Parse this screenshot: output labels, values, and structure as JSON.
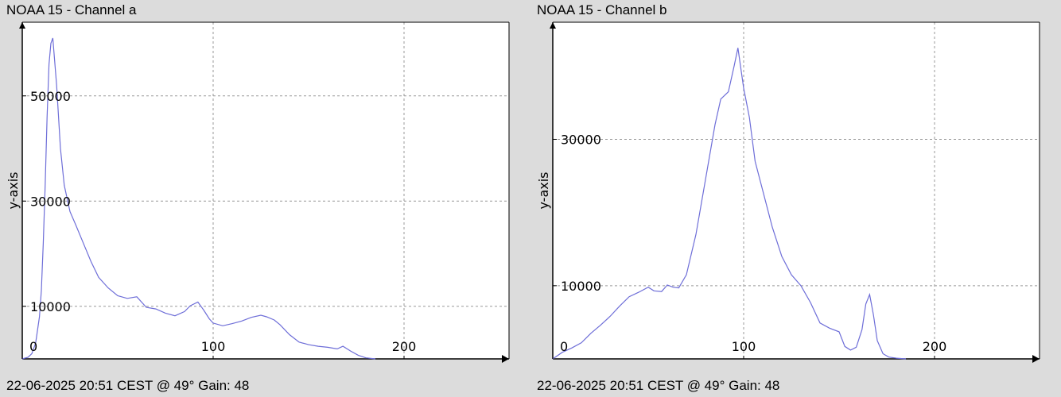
{
  "charts": [
    {
      "title": "NOAA 15 - Channel a",
      "footer": "22-06-2025 20:51 CEST @ 49° Gain: 48"
    },
    {
      "title": "NOAA 15 - Channel b",
      "footer": "22-06-2025 20:51 CEST @ 49° Gain: 48"
    }
  ],
  "colors": {
    "background": "#dcdcdc",
    "plot_area": "#ffffff",
    "line": "#6e6ed8",
    "grid": "#999999"
  },
  "chart_data": [
    {
      "type": "line",
      "title": "NOAA 15 - Channel a",
      "xlabel": "",
      "ylabel": "y-axis",
      "xlim": [
        0,
        255
      ],
      "ylim": [
        0,
        64000
      ],
      "xticks": [
        0,
        100,
        200
      ],
      "yticks": [
        10000,
        30000,
        50000
      ],
      "grid": true,
      "series": [
        {
          "x": [
            0,
            3,
            5,
            7,
            9,
            10,
            11,
            12,
            13,
            14,
            15,
            16,
            18,
            20,
            22,
            25,
            28,
            32,
            36,
            40,
            45,
            50,
            55,
            60,
            65,
            70,
            75,
            80,
            85,
            88,
            92,
            95,
            98,
            100,
            105,
            110,
            115,
            120,
            125,
            128,
            132,
            135,
            140,
            145,
            150,
            155,
            160,
            165,
            168,
            172,
            176,
            180,
            185
          ],
          "y": [
            0,
            300,
            1000,
            3000,
            8000,
            13000,
            22000,
            33000,
            46000,
            56000,
            60000,
            61000,
            52000,
            40000,
            33000,
            28000,
            25500,
            22000,
            18500,
            15500,
            13500,
            12000,
            11500,
            11800,
            9800,
            9500,
            8700,
            8200,
            9000,
            10100,
            10800,
            9300,
            7600,
            6800,
            6300,
            6700,
            7200,
            7900,
            8300,
            8000,
            7400,
            6500,
            4600,
            3200,
            2700,
            2400,
            2200,
            1900,
            2400,
            1500,
            700,
            200,
            0
          ]
        }
      ]
    },
    {
      "type": "line",
      "title": "NOAA 15 - Channel b",
      "xlabel": "",
      "ylabel": "y-axis",
      "xlim": [
        0,
        255
      ],
      "ylim": [
        0,
        46000
      ],
      "xticks": [
        0,
        100,
        200
      ],
      "yticks": [
        10000,
        30000
      ],
      "grid": true,
      "series": [
        {
          "x": [
            0,
            5,
            10,
            15,
            20,
            25,
            30,
            35,
            40,
            45,
            50,
            53,
            57,
            60,
            63,
            66,
            70,
            75,
            80,
            85,
            88,
            92,
            95,
            97,
            100,
            103,
            106,
            110,
            115,
            120,
            125,
            130,
            135,
            140,
            145,
            150,
            153,
            156,
            159,
            162,
            164,
            166,
            168,
            170,
            173,
            176,
            180,
            185
          ],
          "y": [
            0,
            900,
            1500,
            2200,
            3500,
            4600,
            5800,
            7200,
            8500,
            9100,
            9800,
            9300,
            9200,
            10100,
            9800,
            9700,
            11500,
            17000,
            24500,
            32000,
            35500,
            36500,
            40000,
            42500,
            37000,
            33000,
            27000,
            23000,
            18000,
            14000,
            11500,
            10000,
            7700,
            4900,
            4200,
            3700,
            1700,
            1200,
            1600,
            4000,
            7500,
            8800,
            6000,
            2500,
            700,
            250,
            100,
            0
          ]
        }
      ]
    }
  ]
}
